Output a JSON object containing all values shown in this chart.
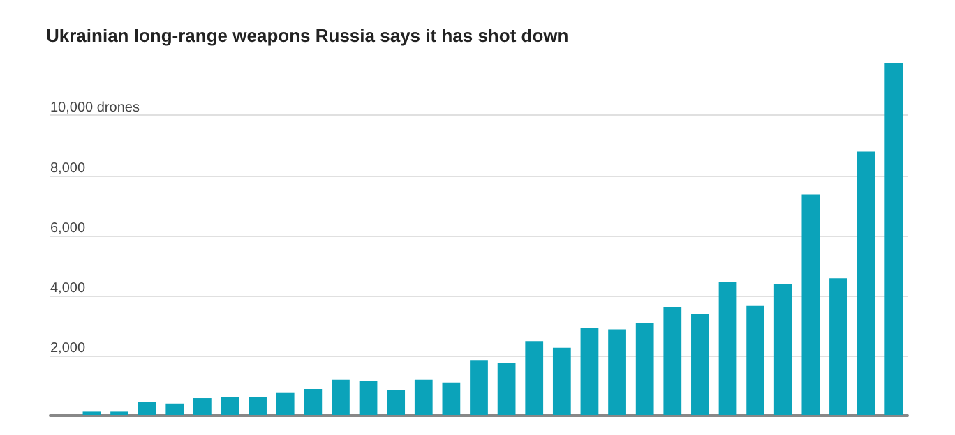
{
  "chart_data": {
    "type": "bar",
    "title": "Ukrainian long-range weapons Russia says it has shot down",
    "categories": [
      null,
      null,
      null,
      null,
      null,
      null,
      null,
      null,
      null,
      null,
      null,
      null,
      null,
      null,
      null,
      null,
      null,
      null,
      null,
      null,
      null,
      null,
      null,
      null,
      null,
      null,
      null,
      null,
      null,
      null,
      null
    ],
    "values": [
      null,
      130,
      130,
      450,
      400,
      580,
      620,
      620,
      750,
      880,
      1190,
      1150,
      840,
      1190,
      1100,
      1830,
      1740,
      2480,
      2260,
      2910,
      2870,
      3090,
      3610,
      3390,
      4440,
      3650,
      4390,
      7350,
      4570,
      8790,
      11740
    ],
    "color": "#0ba3ba",
    "ylim": [
      0,
      11800
    ],
    "yticks": [
      {
        "value": 2000,
        "label": "2,000"
      },
      {
        "value": 4000,
        "label": "4,000"
      },
      {
        "value": 6000,
        "label": "6,000"
      },
      {
        "value": 8000,
        "label": "8,000"
      },
      {
        "value": 10000,
        "label": "10,000 drones"
      }
    ],
    "grid": "y"
  }
}
